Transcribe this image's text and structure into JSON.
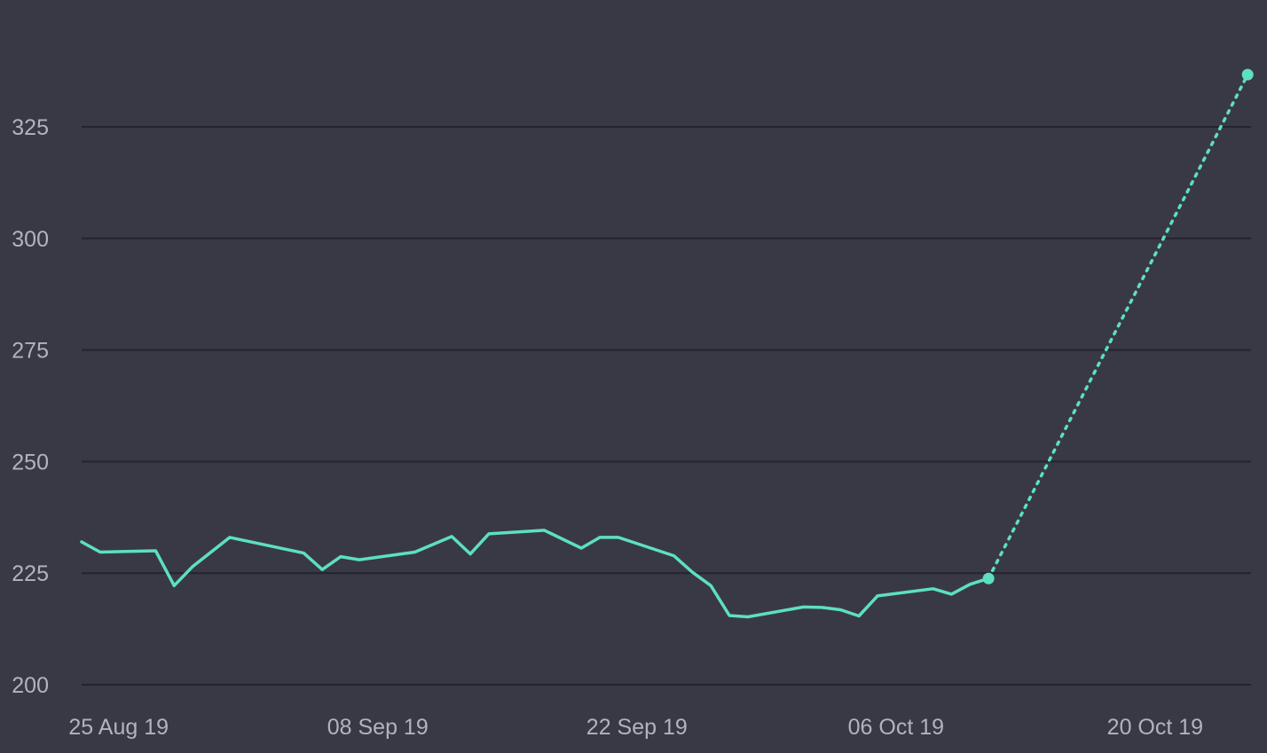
{
  "chart_data": {
    "type": "line",
    "title": "",
    "xlabel": "",
    "ylabel": "",
    "x_axis_type": "date",
    "xlim": [
      "2019-08-23",
      "2019-10-23"
    ],
    "ylim": [
      200,
      337
    ],
    "y_ticks": [
      200,
      225,
      250,
      275,
      300,
      325
    ],
    "x_ticks": [
      {
        "date": "2019-08-25",
        "label": "25 Aug 19"
      },
      {
        "date": "2019-09-08",
        "label": "08 Sep 19"
      },
      {
        "date": "2019-09-22",
        "label": "22 Sep 19"
      },
      {
        "date": "2019-10-06",
        "label": "06 Oct 19"
      },
      {
        "date": "2019-10-20",
        "label": "20 Oct 19"
      }
    ],
    "grid": "horizontal",
    "legend": "none",
    "colors": {
      "background": "#393945",
      "grid": "#24242c",
      "series": "#5de0c0",
      "tick_text": "#b3b3bd"
    },
    "series": [
      {
        "style": "solid",
        "points": [
          {
            "x": "2019-08-23",
            "y": 232.0
          },
          {
            "x": "2019-08-24",
            "y": 229.7
          },
          {
            "x": "2019-08-27",
            "y": 230.0
          },
          {
            "x": "2019-08-28",
            "y": 222.2
          },
          {
            "x": "2019-08-29",
            "y": 226.5
          },
          {
            "x": "2019-08-31",
            "y": 233.0
          },
          {
            "x": "2019-09-04",
            "y": 229.5
          },
          {
            "x": "2019-09-05",
            "y": 225.8
          },
          {
            "x": "2019-09-06",
            "y": 228.7
          },
          {
            "x": "2019-09-07",
            "y": 228.0
          },
          {
            "x": "2019-09-10",
            "y": 229.7
          },
          {
            "x": "2019-09-12",
            "y": 233.2
          },
          {
            "x": "2019-09-13",
            "y": 229.3
          },
          {
            "x": "2019-09-14",
            "y": 233.8
          },
          {
            "x": "2019-09-17",
            "y": 234.6
          },
          {
            "x": "2019-09-19",
            "y": 230.6
          },
          {
            "x": "2019-09-20",
            "y": 233.0
          },
          {
            "x": "2019-09-21",
            "y": 233.0
          },
          {
            "x": "2019-09-24",
            "y": 228.9
          },
          {
            "x": "2019-09-25",
            "y": 225.2
          },
          {
            "x": "2019-09-26",
            "y": 222.2
          },
          {
            "x": "2019-09-27",
            "y": 215.5
          },
          {
            "x": "2019-09-28",
            "y": 215.2
          },
          {
            "x": "2019-10-01",
            "y": 217.4
          },
          {
            "x": "2019-10-02",
            "y": 217.3
          },
          {
            "x": "2019-10-03",
            "y": 216.8
          },
          {
            "x": "2019-10-04",
            "y": 215.4
          },
          {
            "x": "2019-10-05",
            "y": 219.9
          },
          {
            "x": "2019-10-08",
            "y": 221.5
          },
          {
            "x": "2019-10-09",
            "y": 220.3
          },
          {
            "x": "2019-10-10",
            "y": 222.5
          },
          {
            "x": "2019-10-11",
            "y": 223.8
          }
        ]
      },
      {
        "style": "dotted",
        "points": [
          {
            "x": "2019-10-11",
            "y": 223.8
          },
          {
            "x": "2019-10-25",
            "y": 336.7
          }
        ]
      }
    ]
  }
}
